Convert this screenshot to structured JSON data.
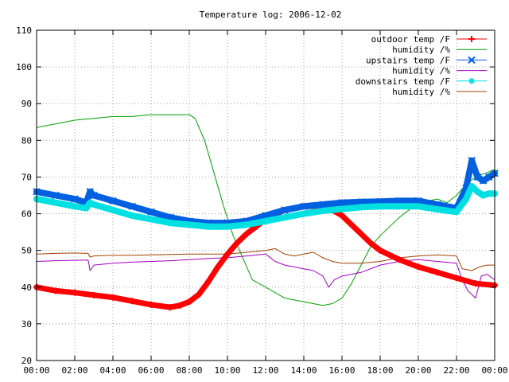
{
  "chart_data": {
    "type": "line",
    "title": "Temperature log: 2006-12-02",
    "xlabel": "",
    "ylabel": "",
    "xlim": [
      0,
      24
    ],
    "ylim": [
      20,
      110
    ],
    "x_tick_labels": [
      "00:00",
      "02:00",
      "04:00",
      "06:00",
      "08:00",
      "10:00",
      "12:00",
      "14:00",
      "16:00",
      "18:00",
      "20:00",
      "22:00",
      "00:00"
    ],
    "y_tick_labels": [
      "20",
      "30",
      "40",
      "50",
      "60",
      "70",
      "80",
      "90",
      "100",
      "110"
    ],
    "grid": true,
    "legend_position": "top-right",
    "series": [
      {
        "name": "outdoor temp /F",
        "color": "#ff0000",
        "marker": "plus",
        "x": [
          0,
          1,
          2,
          3,
          4,
          5,
          6,
          7,
          7.5,
          8,
          8.5,
          9,
          9.5,
          10,
          10.5,
          11,
          11.5,
          12,
          13,
          14,
          15,
          15.5,
          16,
          16.5,
          17,
          17.5,
          18,
          19,
          20,
          21,
          22,
          23,
          24
        ],
        "y": [
          40,
          39,
          38.5,
          37.8,
          37.2,
          36.2,
          35.2,
          34.5,
          35,
          36,
          38,
          41.5,
          45.5,
          49,
          52,
          54.5,
          56.5,
          58.5,
          61,
          62,
          62,
          61,
          59.5,
          57,
          54.5,
          52,
          50,
          47.5,
          45.5,
          44,
          42.5,
          41,
          40.5
        ]
      },
      {
        "name": "humidity /%",
        "color": "#00a000",
        "marker": "none",
        "x": [
          0,
          0.5,
          1,
          2,
          3,
          4,
          5,
          6,
          7,
          7.5,
          8,
          8.3,
          8.8,
          9.3,
          9.8,
          10.3,
          10.8,
          11.3,
          12,
          13,
          14,
          14.5,
          15,
          15.5,
          16,
          16.5,
          17,
          17.5,
          18,
          19,
          20,
          21,
          21.5,
          22,
          22.5,
          23,
          23.5,
          24
        ],
        "y": [
          83.5,
          84,
          84.5,
          85.5,
          86,
          86.5,
          86.5,
          87,
          87,
          87,
          87,
          86,
          80,
          71,
          62,
          54,
          48,
          42,
          40,
          37,
          36,
          35.5,
          35,
          35.5,
          37,
          41,
          46,
          51,
          54,
          59,
          63,
          64,
          63,
          65,
          68,
          70,
          71,
          72
        ]
      },
      {
        "name": "upstairs temp /F",
        "color": "#0060e0",
        "marker": "cross",
        "x": [
          0,
          1,
          2,
          2.6,
          2.8,
          3,
          4,
          5,
          6,
          7,
          8,
          9,
          10,
          11,
          12,
          13,
          14,
          15,
          16,
          17,
          18,
          19,
          20,
          21,
          22,
          22.5,
          22.8,
          23.1,
          23.4,
          23.7,
          24
        ],
        "y": [
          66,
          65,
          64,
          63,
          66,
          65,
          63.5,
          62,
          60.5,
          59,
          58,
          57.5,
          57.5,
          58,
          59.5,
          61,
          62,
          62.5,
          63,
          63.2,
          63.3,
          63.5,
          63.5,
          62.5,
          61.5,
          67,
          74.5,
          70,
          69,
          70,
          71
        ]
      },
      {
        "name": "humidity /%",
        "color": "#a000c0",
        "marker": "none",
        "x": [
          0,
          1,
          2,
          2.7,
          2.8,
          3,
          4,
          5,
          6,
          7,
          8,
          9,
          10,
          11,
          12,
          12.5,
          13,
          14,
          14.5,
          15,
          15.3,
          15.6,
          16,
          17,
          18,
          19,
          20,
          21,
          22,
          22.3,
          22.6,
          23,
          23.3,
          23.6,
          24
        ],
        "y": [
          47,
          47.2,
          47.3,
          47.4,
          44.5,
          46,
          46.5,
          46.8,
          47,
          47.2,
          47.5,
          47.8,
          48,
          48.5,
          49,
          47,
          46,
          45,
          44.5,
          43,
          40,
          42,
          43,
          44,
          46,
          47,
          47.5,
          47,
          46.5,
          42,
          39,
          37,
          43,
          43.5,
          42
        ]
      },
      {
        "name": "downstairs temp /F",
        "color": "#00e0e0",
        "marker": "star",
        "x": [
          0,
          1,
          2,
          2.6,
          2.8,
          3,
          4,
          5,
          6,
          7,
          8,
          9,
          10,
          11,
          12,
          13,
          14,
          15,
          16,
          17,
          18,
          19,
          20,
          21,
          22,
          22.5,
          22.8,
          23.1,
          23.4,
          23.7,
          24
        ],
        "y": [
          64,
          63,
          62,
          61.5,
          63,
          62.5,
          61,
          59.5,
          58.5,
          57.5,
          57,
          56.5,
          56.5,
          57,
          58,
          59,
          60,
          60.8,
          61.3,
          61.8,
          62,
          62,
          62,
          61.2,
          60.5,
          64,
          67.5,
          66,
          65,
          65.5,
          65.5
        ]
      },
      {
        "name": "humidity /%",
        "color": "#a04000",
        "marker": "none",
        "x": [
          0,
          1,
          2,
          2.7,
          2.8,
          3,
          4,
          5,
          6,
          7,
          8,
          9,
          10,
          11,
          12,
          12.5,
          13,
          13.5,
          14,
          14.5,
          15,
          15.5,
          16,
          17,
          18,
          19,
          20,
          21,
          22,
          22.3,
          22.8,
          23.2,
          23.6,
          24
        ],
        "y": [
          49,
          49.2,
          49.3,
          49.2,
          48.2,
          48.5,
          48.7,
          48.7,
          48.8,
          48.9,
          49,
          49,
          49,
          49.5,
          50,
          50.5,
          49,
          48.5,
          49,
          49.5,
          48,
          47,
          46.5,
          46.5,
          47,
          48,
          48.5,
          48.8,
          48.5,
          45,
          44.5,
          45.5,
          46,
          46
        ]
      }
    ]
  }
}
